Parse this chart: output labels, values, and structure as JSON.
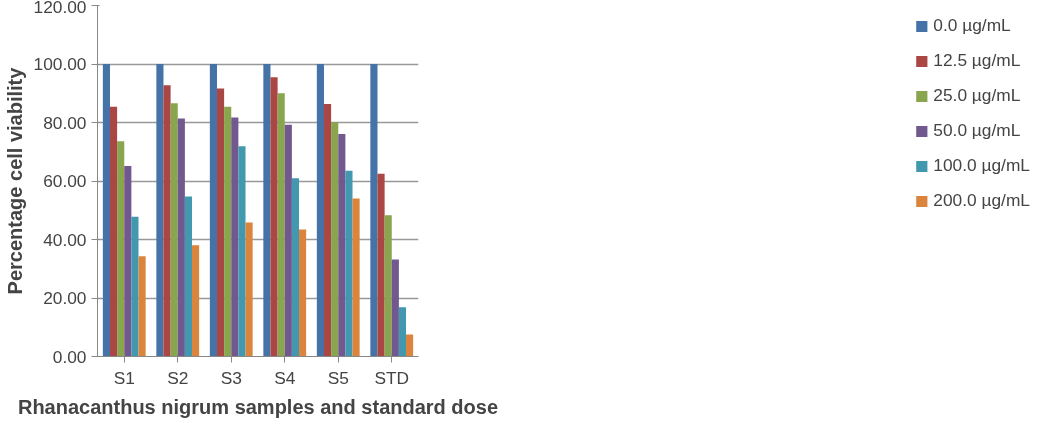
{
  "chart_data": {
    "type": "bar",
    "xlabel": "Rhanacanthus nigrum samples and standard dose",
    "ylabel": "Percentage cell viability",
    "categories": [
      "S1",
      "S2",
      "S3",
      "S4",
      "S5",
      "STD"
    ],
    "series": [
      {
        "name": "0.0 µg/mL",
        "color": "#4572a7",
        "values": [
          100,
          100,
          100,
          100,
          100,
          100
        ]
      },
      {
        "name": "12.5 µg/mL",
        "color": "#aa4643",
        "values": [
          85.4,
          92.7,
          91.6,
          95.5,
          86.3,
          62.5
        ]
      },
      {
        "name": "25.0 µg/mL",
        "color": "#89a54e",
        "values": [
          73.6,
          86.6,
          85.4,
          90.0,
          80.1,
          48.3
        ]
      },
      {
        "name": "50.0 µg/mL",
        "color": "#71588f",
        "values": [
          65.1,
          81.4,
          81.7,
          79.2,
          76.1,
          33.2
        ]
      },
      {
        "name": "100.0 µg/mL",
        "color": "#4198af",
        "values": [
          47.8,
          54.7,
          71.9,
          60.9,
          63.5,
          16.8
        ]
      },
      {
        "name": "200.0 µg/mL",
        "color": "#db843d",
        "values": [
          34.3,
          38.0,
          45.8,
          43.4,
          54.0,
          7.5
        ]
      }
    ],
    "ylim": [
      0,
      120
    ],
    "yticks": [
      {
        "value": 0,
        "label": "0.00"
      },
      {
        "value": 20,
        "label": "20.00"
      },
      {
        "value": 40,
        "label": "40.00"
      },
      {
        "value": 60,
        "label": "60.00"
      },
      {
        "value": 80,
        "label": "80.00"
      },
      {
        "value": 100,
        "label": "100.00"
      },
      {
        "value": 120,
        "label": "120.00"
      }
    ],
    "grid": "y",
    "legend": "right"
  }
}
